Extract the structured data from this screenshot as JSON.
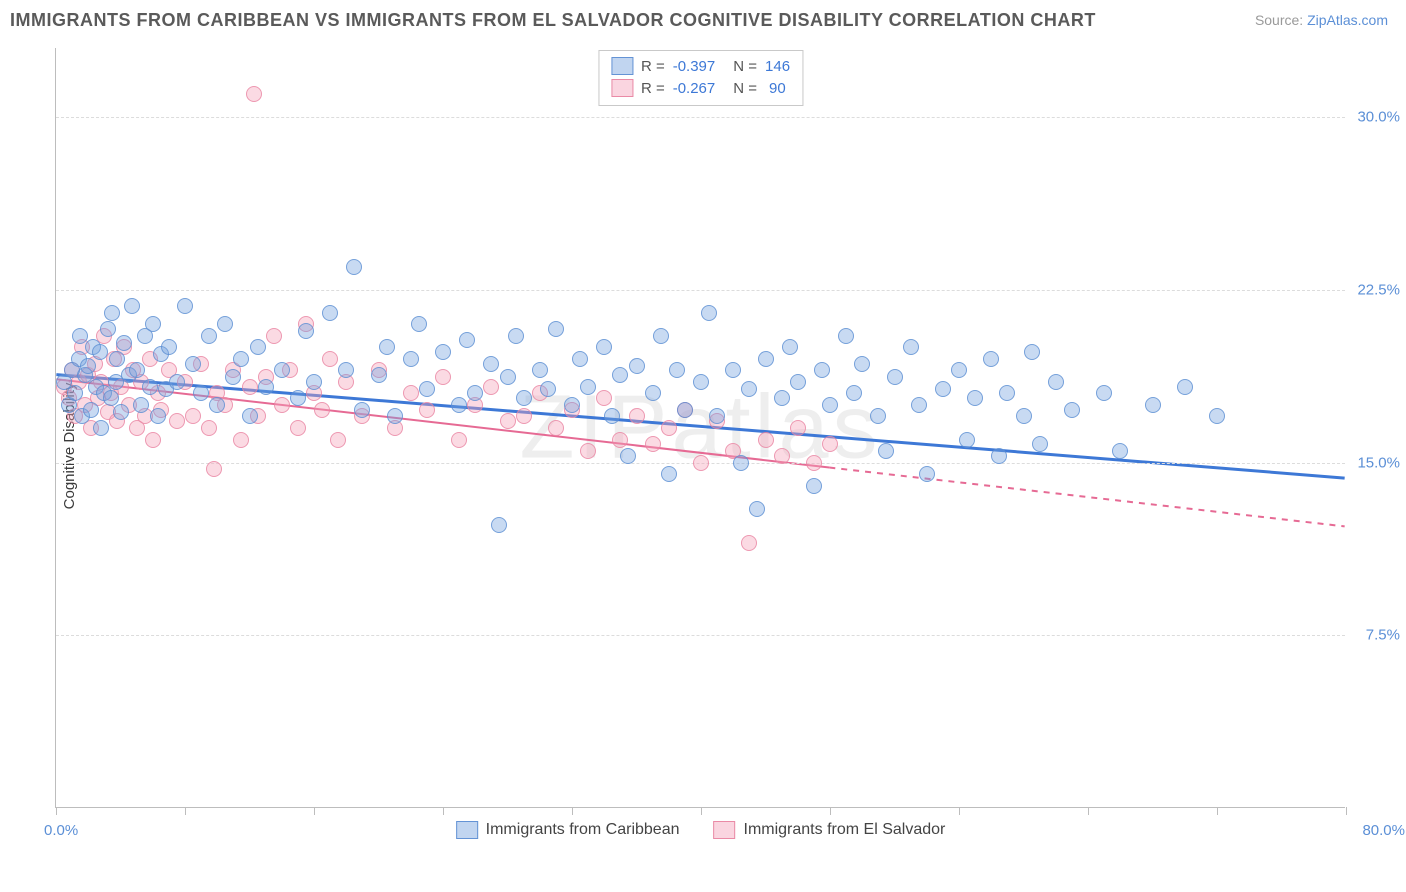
{
  "title": "IMMIGRANTS FROM CARIBBEAN VS IMMIGRANTS FROM EL SALVADOR COGNITIVE DISABILITY CORRELATION CHART",
  "source_prefix": "Source: ",
  "source_name": "ZipAtlas.com",
  "ylabel": "Cognitive Disability",
  "watermark": "ZIPatlas",
  "chart": {
    "type": "scatter",
    "background_color": "#ffffff",
    "grid_color": "#dcdcdc",
    "axis_color": "#bdbdbd",
    "xlim": [
      0,
      80
    ],
    "ylim": [
      0,
      33
    ],
    "x_ticks": [
      0,
      8,
      16,
      24,
      32,
      40,
      48,
      56,
      64,
      72,
      80
    ],
    "x_tick_labels": {
      "min": "0.0%",
      "max": "80.0%"
    },
    "y_gridlines": [
      7.5,
      15.0,
      22.5,
      30.0
    ],
    "y_tick_labels": [
      "7.5%",
      "15.0%",
      "22.5%",
      "30.0%"
    ],
    "series": [
      {
        "id": "caribbean",
        "label": "Immigrants from Caribbean",
        "color_fill": "rgba(118,162,222,0.40)",
        "color_stroke": "rgba(90,140,210,0.9)",
        "marker_size": 16,
        "R": "-0.397",
        "N": "146",
        "trend": {
          "x1": 0,
          "y1": 18.8,
          "x2": 80,
          "y2": 14.3,
          "color": "#3d78d6",
          "width": 3,
          "dash_after_x": null
        },
        "points": [
          [
            0.5,
            18.5
          ],
          [
            0.8,
            17.5
          ],
          [
            1,
            19.0
          ],
          [
            1.2,
            18.0
          ],
          [
            1.4,
            19.5
          ],
          [
            1.5,
            20.5
          ],
          [
            1.6,
            17.0
          ],
          [
            1.8,
            18.8
          ],
          [
            2,
            19.2
          ],
          [
            2.2,
            17.3
          ],
          [
            2.3,
            20.0
          ],
          [
            2.5,
            18.3
          ],
          [
            2.7,
            19.8
          ],
          [
            2.8,
            16.5
          ],
          [
            3,
            18.0
          ],
          [
            3.2,
            20.8
          ],
          [
            3.4,
            17.8
          ],
          [
            3.5,
            21.5
          ],
          [
            3.7,
            18.5
          ],
          [
            3.8,
            19.5
          ],
          [
            4,
            17.2
          ],
          [
            4.2,
            20.2
          ],
          [
            4.5,
            18.8
          ],
          [
            4.7,
            21.8
          ],
          [
            5,
            19.0
          ],
          [
            5.3,
            17.5
          ],
          [
            5.5,
            20.5
          ],
          [
            5.8,
            18.3
          ],
          [
            6,
            21.0
          ],
          [
            6.3,
            17.0
          ],
          [
            6.5,
            19.7
          ],
          [
            6.8,
            18.2
          ],
          [
            7,
            20.0
          ],
          [
            7.5,
            18.5
          ],
          [
            8,
            21.8
          ],
          [
            8.5,
            19.3
          ],
          [
            9,
            18.0
          ],
          [
            9.5,
            20.5
          ],
          [
            10,
            17.5
          ],
          [
            10.5,
            21.0
          ],
          [
            11,
            18.7
          ],
          [
            11.5,
            19.5
          ],
          [
            12,
            17.0
          ],
          [
            12.5,
            20.0
          ],
          [
            13,
            18.3
          ],
          [
            14,
            19.0
          ],
          [
            15,
            17.8
          ],
          [
            15.5,
            20.7
          ],
          [
            16,
            18.5
          ],
          [
            17,
            21.5
          ],
          [
            18,
            19.0
          ],
          [
            18.5,
            23.5
          ],
          [
            19,
            17.3
          ],
          [
            20,
            18.8
          ],
          [
            20.5,
            20.0
          ],
          [
            21,
            17.0
          ],
          [
            22,
            19.5
          ],
          [
            22.5,
            21.0
          ],
          [
            23,
            18.2
          ],
          [
            24,
            19.8
          ],
          [
            25,
            17.5
          ],
          [
            25.5,
            20.3
          ],
          [
            26,
            18.0
          ],
          [
            27,
            19.3
          ],
          [
            27.5,
            12.3
          ],
          [
            28,
            18.7
          ],
          [
            28.5,
            20.5
          ],
          [
            29,
            17.8
          ],
          [
            30,
            19.0
          ],
          [
            30.5,
            18.2
          ],
          [
            31,
            20.8
          ],
          [
            32,
            17.5
          ],
          [
            32.5,
            19.5
          ],
          [
            33,
            18.3
          ],
          [
            34,
            20.0
          ],
          [
            34.5,
            17.0
          ],
          [
            35,
            18.8
          ],
          [
            35.5,
            15.3
          ],
          [
            36,
            19.2
          ],
          [
            37,
            18.0
          ],
          [
            37.5,
            20.5
          ],
          [
            38,
            14.5
          ],
          [
            38.5,
            19.0
          ],
          [
            39,
            17.3
          ],
          [
            40,
            18.5
          ],
          [
            40.5,
            21.5
          ],
          [
            41,
            17.0
          ],
          [
            42,
            19.0
          ],
          [
            42.5,
            15.0
          ],
          [
            43,
            18.2
          ],
          [
            43.5,
            13.0
          ],
          [
            44,
            19.5
          ],
          [
            45,
            17.8
          ],
          [
            45.5,
            20.0
          ],
          [
            46,
            18.5
          ],
          [
            47,
            14.0
          ],
          [
            47.5,
            19.0
          ],
          [
            48,
            17.5
          ],
          [
            49,
            20.5
          ],
          [
            49.5,
            18.0
          ],
          [
            50,
            19.3
          ],
          [
            51,
            17.0
          ],
          [
            51.5,
            15.5
          ],
          [
            52,
            18.7
          ],
          [
            53,
            20.0
          ],
          [
            53.5,
            17.5
          ],
          [
            54,
            14.5
          ],
          [
            55,
            18.2
          ],
          [
            56,
            19.0
          ],
          [
            56.5,
            16.0
          ],
          [
            57,
            17.8
          ],
          [
            58,
            19.5
          ],
          [
            58.5,
            15.3
          ],
          [
            59,
            18.0
          ],
          [
            60,
            17.0
          ],
          [
            60.5,
            19.8
          ],
          [
            61,
            15.8
          ],
          [
            62,
            18.5
          ],
          [
            63,
            17.3
          ],
          [
            65,
            18.0
          ],
          [
            66,
            15.5
          ],
          [
            68,
            17.5
          ],
          [
            70,
            18.3
          ],
          [
            72,
            17.0
          ]
        ]
      },
      {
        "id": "elsalvador",
        "label": "Immigrants from El Salvador",
        "color_fill": "rgba(244,162,186,0.40)",
        "color_stroke": "rgba(232,130,160,0.9)",
        "marker_size": 16,
        "R": "-0.267",
        "N": "90",
        "trend": {
          "x1": 0,
          "y1": 18.6,
          "x2": 80,
          "y2": 12.2,
          "color": "#e66a94",
          "width": 2,
          "dash_after_x": 48
        },
        "points": [
          [
            0.5,
            18.3
          ],
          [
            0.8,
            17.8
          ],
          [
            1,
            19.0
          ],
          [
            1.2,
            17.0
          ],
          [
            1.4,
            18.5
          ],
          [
            1.6,
            20.0
          ],
          [
            1.8,
            17.5
          ],
          [
            2,
            18.8
          ],
          [
            2.2,
            16.5
          ],
          [
            2.4,
            19.3
          ],
          [
            2.6,
            17.8
          ],
          [
            2.8,
            18.5
          ],
          [
            3,
            20.5
          ],
          [
            3.2,
            17.2
          ],
          [
            3.4,
            18.0
          ],
          [
            3.6,
            19.5
          ],
          [
            3.8,
            16.8
          ],
          [
            4,
            18.3
          ],
          [
            4.2,
            20.0
          ],
          [
            4.5,
            17.5
          ],
          [
            4.8,
            19.0
          ],
          [
            5,
            16.5
          ],
          [
            5.3,
            18.5
          ],
          [
            5.5,
            17.0
          ],
          [
            5.8,
            19.5
          ],
          [
            6,
            16.0
          ],
          [
            6.3,
            18.0
          ],
          [
            6.5,
            17.3
          ],
          [
            7,
            19.0
          ],
          [
            7.5,
            16.8
          ],
          [
            8,
            18.5
          ],
          [
            8.5,
            17.0
          ],
          [
            9,
            19.3
          ],
          [
            9.5,
            16.5
          ],
          [
            9.8,
            14.7
          ],
          [
            10,
            18.0
          ],
          [
            10.5,
            17.5
          ],
          [
            11,
            19.0
          ],
          [
            11.5,
            16.0
          ],
          [
            12,
            18.3
          ],
          [
            12.3,
            31.0
          ],
          [
            12.5,
            17.0
          ],
          [
            13,
            18.7
          ],
          [
            13.5,
            20.5
          ],
          [
            14,
            17.5
          ],
          [
            14.5,
            19.0
          ],
          [
            15,
            16.5
          ],
          [
            15.5,
            21.0
          ],
          [
            16,
            18.0
          ],
          [
            16.5,
            17.3
          ],
          [
            17,
            19.5
          ],
          [
            17.5,
            16.0
          ],
          [
            18,
            18.5
          ],
          [
            19,
            17.0
          ],
          [
            20,
            19.0
          ],
          [
            21,
            16.5
          ],
          [
            22,
            18.0
          ],
          [
            23,
            17.3
          ],
          [
            24,
            18.7
          ],
          [
            25,
            16.0
          ],
          [
            26,
            17.5
          ],
          [
            27,
            18.3
          ],
          [
            28,
            16.8
          ],
          [
            29,
            17.0
          ],
          [
            30,
            18.0
          ],
          [
            31,
            16.5
          ],
          [
            32,
            17.3
          ],
          [
            33,
            15.5
          ],
          [
            34,
            17.8
          ],
          [
            35,
            16.0
          ],
          [
            36,
            17.0
          ],
          [
            37,
            15.8
          ],
          [
            38,
            16.5
          ],
          [
            39,
            17.3
          ],
          [
            40,
            15.0
          ],
          [
            41,
            16.8
          ],
          [
            42,
            15.5
          ],
          [
            43,
            11.5
          ],
          [
            44,
            16.0
          ],
          [
            45,
            15.3
          ],
          [
            46,
            16.5
          ],
          [
            47,
            15.0
          ],
          [
            48,
            15.8
          ]
        ]
      }
    ]
  }
}
